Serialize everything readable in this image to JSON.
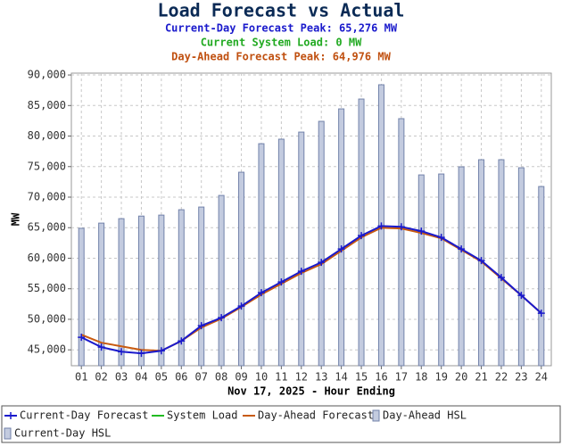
{
  "chart_data": {
    "type": "combo",
    "title": "Load Forecast vs Actual",
    "subtitles": [
      {
        "text": "Current-Day Forecast Peak:  65,276 MW",
        "color": "#1a1acc"
      },
      {
        "text": "Current System Load:  0 MW",
        "color": "#22aa22"
      },
      {
        "text": "Day-Ahead Forecast Peak:  64,976 MW",
        "color": "#c05010"
      }
    ],
    "x_label": "Nov 17, 2025 - Hour Ending",
    "y_label": "MW",
    "categories": [
      "01",
      "02",
      "03",
      "04",
      "05",
      "06",
      "07",
      "08",
      "09",
      "10",
      "11",
      "12",
      "13",
      "14",
      "15",
      "16",
      "17",
      "18",
      "19",
      "20",
      "21",
      "22",
      "23",
      "24"
    ],
    "ylim": [
      42400,
      90300
    ],
    "yticks": [
      {
        "value": 45000,
        "label": "45,000"
      },
      {
        "value": 50000,
        "label": "50,000"
      },
      {
        "value": 55000,
        "label": "55,000"
      },
      {
        "value": 60000,
        "label": "60,000"
      },
      {
        "value": 65000,
        "label": "65,000"
      },
      {
        "value": 70000,
        "label": "70,000"
      },
      {
        "value": 75000,
        "label": "75,000"
      },
      {
        "value": 80000,
        "label": "80,000"
      },
      {
        "value": 85000,
        "label": "85,000"
      },
      {
        "value": 90000,
        "label": "90,000"
      }
    ],
    "grid": true,
    "legend": "bottom",
    "series": [
      {
        "name": "Current-Day Forecast",
        "type": "line",
        "color": "#1a1acc",
        "values": [
          47050,
          45440,
          44700,
          44420,
          44850,
          46460,
          48950,
          50260,
          52160,
          54350,
          56110,
          57860,
          59320,
          61510,
          63700,
          65276,
          65150,
          64430,
          63410,
          61510,
          59610,
          56840,
          53920,
          50990
        ]
      },
      {
        "name": "System Load",
        "type": "line",
        "color": "#22bb22",
        "values": [
          null,
          null,
          null,
          null,
          null,
          null,
          null,
          null,
          null,
          null,
          null,
          null,
          null,
          null,
          null,
          null,
          null,
          null,
          null,
          null,
          null,
          null,
          null,
          null
        ]
      },
      {
        "name": "Day-Ahead Forecast",
        "type": "line",
        "color": "#c85a10",
        "values": [
          47480,
          46170,
          45580,
          45000,
          44850,
          46460,
          48650,
          50110,
          52010,
          54060,
          55810,
          57570,
          59030,
          61220,
          63410,
          64976,
          64870,
          64140,
          63260,
          61370,
          59470,
          56690,
          53920,
          50990
        ]
      },
      {
        "name": "Day-Ahead HSL",
        "type": "bar",
        "color": "#c3cbdf",
        "values": [
          64900,
          65750,
          66480,
          66900,
          67060,
          67940,
          68380,
          70280,
          74080,
          78750,
          79490,
          80650,
          82410,
          84450,
          86060,
          88400,
          82850,
          73640,
          73790,
          74960,
          76130,
          76130,
          74810,
          71740
        ]
      },
      {
        "name": "Current-Day HSL",
        "type": "bar",
        "color": "#c3cbdf",
        "values": [
          null,
          null,
          null,
          null,
          null,
          null,
          null,
          null,
          null,
          null,
          null,
          null,
          null,
          null,
          null,
          null,
          null,
          null,
          null,
          null,
          null,
          null,
          null,
          null
        ]
      }
    ]
  }
}
